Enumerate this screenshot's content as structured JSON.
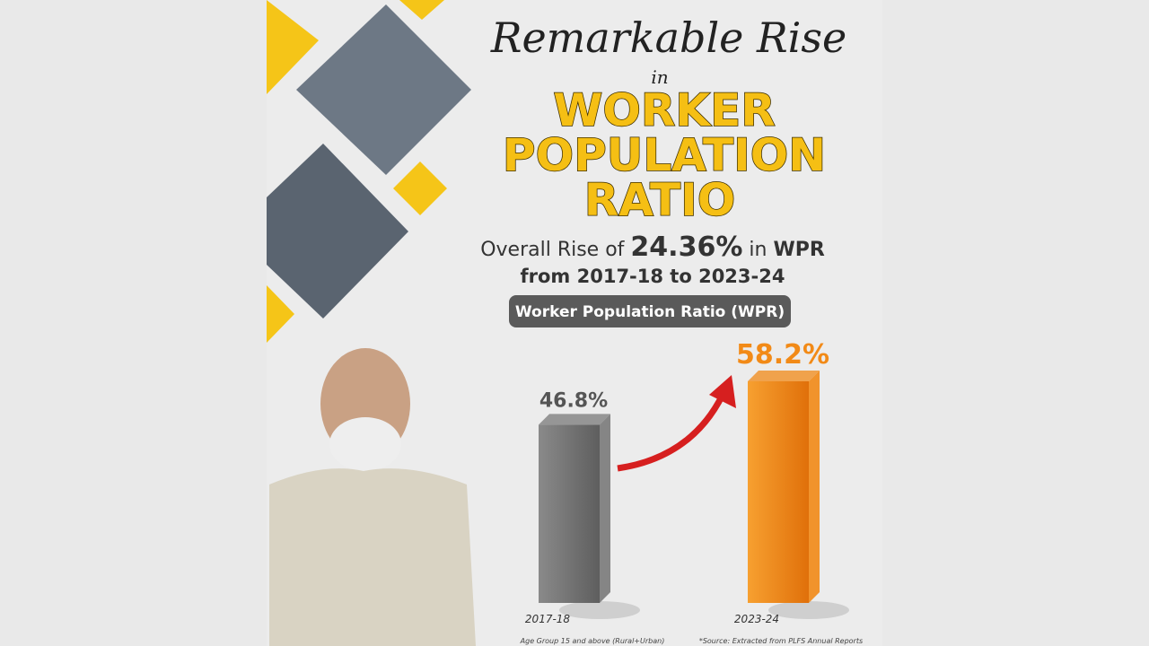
{
  "header": {
    "script_title": "Remarkable Rise",
    "connector": "in",
    "title_lines": [
      "WORKER",
      "POPULATION",
      "RATIO"
    ],
    "rise_prefix": "Overall Rise of",
    "rise_value": "24.36%",
    "rise_mid": "in",
    "rise_suffix": "WPR",
    "period": "from 2017-18 to 2023-24"
  },
  "chart_data": {
    "type": "bar",
    "title": "Worker Population Ratio (WPR)",
    "categories": [
      "2017-18",
      "2023-24"
    ],
    "values": [
      46.8,
      58.2
    ],
    "value_labels": [
      "46.8%",
      "58.2%"
    ],
    "colors": [
      "#7a7a7a",
      "#f28a17"
    ],
    "label_colors": [
      "#555555",
      "#f28a17"
    ]
  },
  "footnotes": {
    "left": "Age Group 15 and above (Rural+Urban)",
    "right": "*Source: Extracted from PLFS Annual Reports"
  }
}
